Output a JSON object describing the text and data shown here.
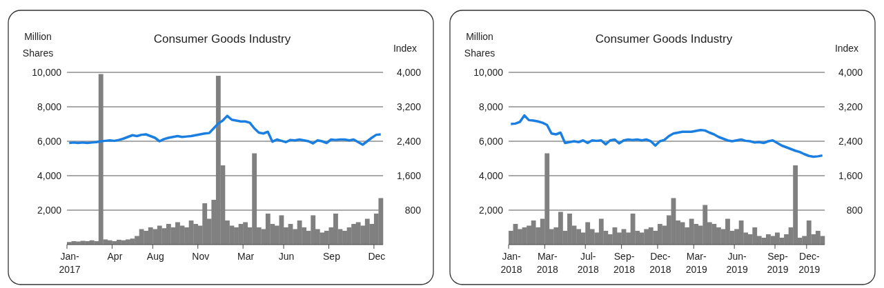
{
  "chart_data": [
    {
      "type": "bar",
      "title": "Consumer Goods Industry",
      "ylabel": "Million Shares",
      "y2label": "Index",
      "categories": [
        "Jan-\n2017",
        null,
        null,
        null,
        null,
        null,
        null,
        null,
        null,
        null,
        "Apr",
        null,
        null,
        null,
        null,
        null,
        null,
        null,
        null,
        "Aug",
        null,
        null,
        null,
        null,
        null,
        null,
        null,
        null,
        null,
        "Nov",
        null,
        null,
        null,
        null,
        null,
        null,
        null,
        null,
        null,
        "Mar",
        null,
        null,
        null,
        null,
        null,
        null,
        null,
        null,
        "Jun",
        null,
        null,
        null,
        null,
        null,
        null,
        null,
        null,
        null,
        "Sep",
        null,
        null,
        null,
        null,
        null,
        null,
        null,
        null,
        null,
        "Dec",
        null
      ],
      "series": [
        {
          "color": "#808080",
          "values": [
            150,
            200,
            180,
            220,
            200,
            250,
            200,
            9900,
            300,
            250,
            200,
            280,
            250,
            300,
            350,
            500,
            900,
            800,
            1000,
            900,
            1100,
            950,
            1200,
            1000,
            1300,
            1100,
            1000,
            1400,
            1200,
            1100,
            2400,
            1500,
            2600,
            9800,
            4600,
            1400,
            1100,
            1000,
            1200,
            1300,
            1000,
            5300,
            1000,
            900,
            1800,
            1200,
            1100,
            1700,
            1000,
            1200,
            900,
            1400,
            1000,
            800,
            1700,
            900,
            700,
            800,
            1000,
            1800,
            900,
            800,
            1000,
            1200,
            1300,
            1100,
            1500,
            1200,
            1800,
            2700
          ]
        },
        {
          "type": "line",
          "axis": "y2",
          "color": "#1a7fe0",
          "values": [
            2360,
            2370,
            2360,
            2370,
            2360,
            2370,
            2380,
            2400,
            2410,
            2420,
            2410,
            2430,
            2460,
            2500,
            2540,
            2520,
            2550,
            2560,
            2520,
            2480,
            2400,
            2450,
            2480,
            2500,
            2520,
            2500,
            2510,
            2520,
            2540,
            2560,
            2580,
            2590,
            2700,
            2810,
            2880,
            2990,
            2900,
            2880,
            2860,
            2860,
            2830,
            2700,
            2600,
            2580,
            2620,
            2390,
            2440,
            2410,
            2380,
            2430,
            2420,
            2440,
            2420,
            2400,
            2350,
            2420,
            2400,
            2360,
            2440,
            2430,
            2440,
            2440,
            2420,
            2440,
            2380,
            2320,
            2400,
            2480,
            2550,
            2560
          ]
        }
      ],
      "ylim": [
        0,
        10000
      ],
      "yticks": [
        {
          "value": 2000,
          "label": "2,000"
        },
        {
          "value": 4000,
          "label": "4,000"
        },
        {
          "value": 6000,
          "label": "6,000"
        },
        {
          "value": 8000,
          "label": "8,000"
        },
        {
          "value": 10000,
          "label": "10,000"
        }
      ],
      "y2lim": [
        0,
        4000
      ],
      "y2ticks": [
        800,
        {
          "value": 1600,
          "label": "1,600"
        },
        {
          "value": 2400,
          "label": "2,400"
        },
        {
          "value": 3200,
          "label": "3,200"
        },
        {
          "value": 4000,
          "label": "4,000"
        }
      ],
      "grid": "y"
    },
    {
      "type": "bar",
      "title": "Consumer Goods Industry",
      "ylabel": "Million Shares",
      "y2label": "Index",
      "categories": [
        "Jan-\n2018",
        null,
        null,
        null,
        null,
        null,
        null,
        null,
        "Mar-\n2018",
        null,
        null,
        null,
        null,
        null,
        null,
        null,
        null,
        "Jul-\n2018",
        null,
        null,
        null,
        null,
        null,
        null,
        null,
        "Sep-\n2018",
        null,
        null,
        null,
        null,
        null,
        null,
        null,
        "Dec-\n2018",
        null,
        null,
        null,
        null,
        null,
        null,
        null,
        "Mar-\n2019",
        null,
        null,
        null,
        null,
        null,
        null,
        null,
        null,
        "Jun-\n2019",
        null,
        null,
        null,
        null,
        null,
        null,
        null,
        null,
        "Sep-\n2019",
        null,
        null,
        null,
        null,
        null,
        null,
        "Dec-\n2019",
        null,
        null,
        null
      ],
      "series": [
        {
          "color": "#808080",
          "values": [
            800,
            1200,
            900,
            1000,
            1100,
            1400,
            1000,
            1500,
            5300,
            900,
            1000,
            1900,
            800,
            1800,
            1100,
            900,
            700,
            1300,
            900,
            700,
            1500,
            800,
            600,
            1000,
            700,
            900,
            700,
            1800,
            800,
            700,
            900,
            1000,
            800,
            1200,
            1100,
            1700,
            2700,
            1400,
            1300,
            1000,
            1500,
            1200,
            1100,
            2300,
            1300,
            1200,
            1000,
            900,
            1500,
            800,
            900,
            1400,
            700,
            600,
            1000,
            500,
            400,
            600,
            500,
            700,
            400,
            600,
            1000,
            4600,
            400,
            500,
            1400,
            600,
            800,
            500
          ]
        },
        {
          "type": "line",
          "axis": "y2",
          "color": "#1a7fe0",
          "values": [
            2800,
            2810,
            2850,
            3000,
            2890,
            2880,
            2860,
            2830,
            2780,
            2580,
            2560,
            2600,
            2360,
            2380,
            2400,
            2380,
            2420,
            2360,
            2420,
            2410,
            2420,
            2330,
            2420,
            2440,
            2350,
            2420,
            2440,
            2430,
            2440,
            2420,
            2440,
            2400,
            2300,
            2400,
            2430,
            2520,
            2580,
            2600,
            2620,
            2620,
            2620,
            2640,
            2660,
            2650,
            2600,
            2560,
            2500,
            2460,
            2420,
            2400,
            2420,
            2440,
            2410,
            2400,
            2370,
            2380,
            2360,
            2400,
            2420,
            2360,
            2300,
            2260,
            2220,
            2180,
            2150,
            2100,
            2060,
            2040,
            2050,
            2070
          ]
        }
      ],
      "ylim": [
        0,
        10000
      ],
      "yticks": [
        {
          "value": 2000,
          "label": "2,000"
        },
        {
          "value": 4000,
          "label": "4,000"
        },
        {
          "value": 6000,
          "label": "6,000"
        },
        {
          "value": 8000,
          "label": "8,000"
        },
        {
          "value": 10000,
          "label": "10,000"
        }
      ],
      "y2lim": [
        0,
        4000
      ],
      "y2ticks": [
        800,
        {
          "value": 1600,
          "label": "1,600"
        },
        {
          "value": 2400,
          "label": "2,400"
        },
        {
          "value": 3200,
          "label": "3,200"
        },
        {
          "value": 4000,
          "label": "4,000"
        }
      ],
      "grid": "y"
    }
  ]
}
